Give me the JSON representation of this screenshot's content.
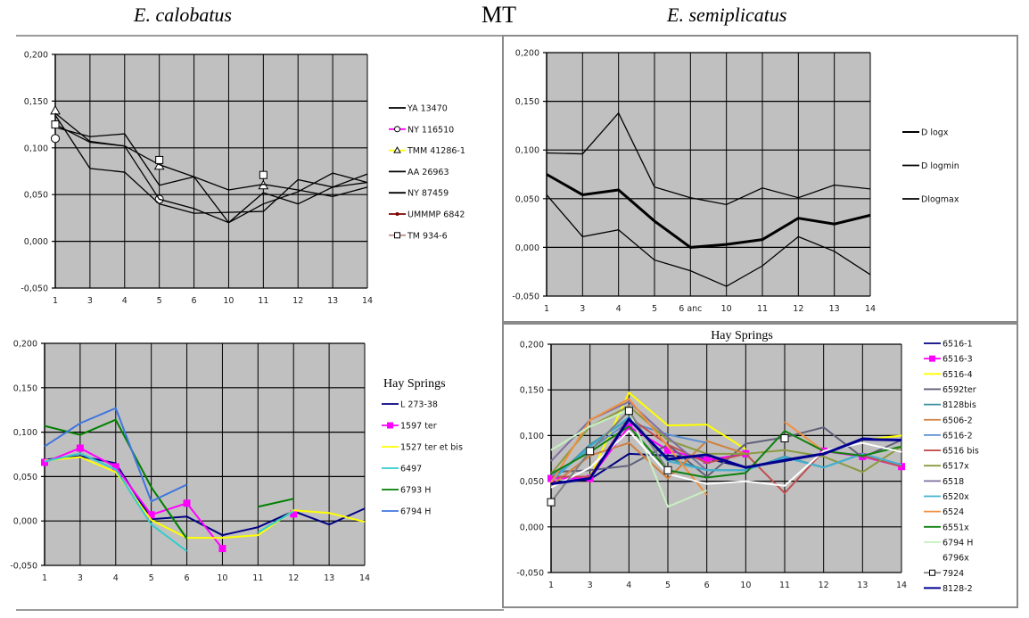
{
  "header": {
    "left_title": "E. calobatus",
    "center_title": "MT",
    "right_title": "E. semiplicatus"
  },
  "chart_data": [
    {
      "type": "line",
      "id": "calobatus-mt",
      "title": "",
      "categories": [
        "1",
        "3",
        "4",
        "5",
        "6",
        "10",
        "11",
        "12",
        "13",
        "14"
      ],
      "ylim": [
        -0.05,
        0.2
      ],
      "y_ticks": [
        "-0,050",
        "0,000",
        "0,050",
        "0,100",
        "0,150",
        "0,200"
      ],
      "grid": true,
      "plot_background": "#c0c0c0",
      "legend_placement": "right",
      "series": [
        {
          "name": "YA 13470",
          "color": "#000000",
          "marker": "none",
          "values": [
            0.122,
            0.112,
            0.115,
            0.06,
            0.069,
            0.02,
            0.052,
            0.04,
            0.058,
            0.072
          ]
        },
        {
          "name": "NY 116510",
          "color": "#ff00ff",
          "line_color": "#000000",
          "marker": "circle",
          "values": [
            0.11,
            null,
            null,
            0.045,
            null,
            null,
            null,
            null,
            null,
            null
          ]
        },
        {
          "name": "TMM 41286-1",
          "color": "#ffff00",
          "line_color": "#000000",
          "marker": "triangle",
          "values": [
            0.14,
            null,
            null,
            0.081,
            null,
            null,
            0.06,
            null,
            null,
            null
          ]
        },
        {
          "name": "AA 26963",
          "color": "#000000",
          "marker": "none",
          "values": [
            0.135,
            0.078,
            0.074,
            0.04,
            0.03,
            0.031,
            0.032,
            0.066,
            0.058,
            0.063
          ]
        },
        {
          "name": "NY 87459",
          "color": "#000000",
          "marker": "none",
          "values": [
            0.125,
            0.106,
            0.102,
            0.045,
            0.035,
            0.02,
            0.04,
            0.053,
            0.073,
            0.063
          ]
        },
        {
          "name": "UMMMP 6842",
          "color": "#800000",
          "line_color": "#000000",
          "marker": "dot",
          "values": [
            0.137,
            0.107,
            0.102,
            0.082,
            0.069,
            0.055,
            0.061,
            0.055,
            0.048,
            0.058
          ]
        },
        {
          "name": "TM 934-6",
          "color": "#c09090",
          "line_color": "#000000",
          "marker": "square",
          "values": [
            0.125,
            null,
            null,
            0.087,
            null,
            null,
            0.071,
            null,
            null,
            null
          ]
        }
      ]
    },
    {
      "type": "line",
      "id": "semiplicatus-mt",
      "title": "",
      "categories": [
        "1",
        "3",
        "4",
        "5",
        "6 anc",
        "10",
        "11",
        "12",
        "13",
        "14"
      ],
      "ylim": [
        -0.05,
        0.2
      ],
      "y_ticks": [
        "-0,050",
        "0,000",
        "0,050",
        "0,100",
        "0,150",
        "0,200"
      ],
      "grid": true,
      "plot_background": "#c0c0c0",
      "legend_placement": "right",
      "series": [
        {
          "name": "D logx",
          "color": "#000000",
          "marker": "none",
          "bold": true,
          "values": [
            0.075,
            0.054,
            0.059,
            0.027,
            0.0,
            0.003,
            0.008,
            0.03,
            0.024,
            0.033
          ]
        },
        {
          "name": "D logmin",
          "color": "#000000",
          "marker": "none",
          "values": [
            0.054,
            0.011,
            0.018,
            -0.013,
            -0.024,
            -0.04,
            -0.019,
            0.011,
            -0.004,
            -0.028
          ]
        },
        {
          "name": "Dlogmax",
          "color": "#000000",
          "marker": "none",
          "values": [
            0.097,
            0.096,
            0.138,
            0.062,
            0.051,
            0.044,
            0.061,
            0.051,
            0.064,
            0.06
          ]
        }
      ]
    },
    {
      "type": "line",
      "id": "calobatus-hay-springs",
      "title": "",
      "legend_title": "Hay Springs",
      "categories": [
        "1",
        "3",
        "4",
        "5",
        "6",
        "10",
        "11",
        "12",
        "13",
        "14"
      ],
      "ylim": [
        -0.05,
        0.2
      ],
      "y_ticks": [
        "-0,050",
        "0,000",
        "0,050",
        "0,100",
        "0,150",
        "0,200"
      ],
      "grid": true,
      "plot_background": "#c0c0c0",
      "legend_placement": "right",
      "series": [
        {
          "name": "L 273-38",
          "color": "#000080",
          "marker": "none",
          "values": [
            0.069,
            0.073,
            0.065,
            0.002,
            0.005,
            -0.016,
            -0.007,
            0.011,
            -0.004,
            0.014
          ]
        },
        {
          "name": "1597 ter",
          "color": "#ff00ff",
          "marker": "square-filled",
          "values": [
            0.066,
            0.082,
            0.061,
            0.007,
            0.02,
            -0.031,
            null,
            0.008,
            null,
            null
          ]
        },
        {
          "name": "1527 ter et bis",
          "color": "#ffff00",
          "marker": "none",
          "values": [
            0.068,
            0.072,
            0.055,
            0.001,
            -0.019,
            -0.019,
            -0.016,
            0.012,
            0.009,
            -0.001
          ]
        },
        {
          "name": "6497",
          "color": "#33cccc",
          "marker": "none",
          "values": [
            0.067,
            0.076,
            0.058,
            -0.004,
            -0.034,
            null,
            -0.013,
            0.011,
            null,
            null
          ]
        },
        {
          "name": "6793 H",
          "color": "#008000",
          "marker": "none",
          "values": [
            0.107,
            0.097,
            0.114,
            0.038,
            -0.02,
            null,
            0.016,
            0.025,
            null,
            null
          ]
        },
        {
          "name": "6794 H",
          "color": "#3f75e0",
          "marker": "none",
          "values": [
            0.084,
            0.11,
            0.127,
            0.022,
            0.041,
            null,
            null,
            null,
            null,
            null
          ]
        }
      ]
    },
    {
      "type": "line",
      "id": "semiplicatus-hay-springs",
      "title": "Hay Springs",
      "categories": [
        "1",
        "3",
        "4",
        "5",
        "6",
        "10",
        "11",
        "12",
        "13",
        "14"
      ],
      "ylim": [
        -0.05,
        0.2
      ],
      "y_ticks": [
        "-0,050",
        "0,000",
        "0,050",
        "0,100",
        "0,150",
        "0,200"
      ],
      "grid": true,
      "plot_background": "#c0c0c0",
      "legend_placement": "right",
      "series": [
        {
          "name": "6516-1",
          "color": "#000080",
          "marker": "none",
          "values": [
            0.048,
            0.052,
            0.08,
            0.078,
            0.075,
            0.065,
            0.072,
            0.08,
            0.097,
            0.095
          ]
        },
        {
          "name": "6516-3",
          "color": "#ff00ff",
          "marker": "square-filled",
          "values": [
            0.053,
            0.053,
            0.11,
            0.084,
            0.073,
            0.08,
            null,
            0.083,
            0.077,
            0.066
          ]
        },
        {
          "name": "6516-4",
          "color": "#ffff00",
          "marker": "none",
          "values": [
            0.055,
            0.055,
            0.147,
            0.111,
            0.112,
            0.085,
            null,
            null,
            0.095,
            0.1
          ]
        },
        {
          "name": "6592ter",
          "color": "#60607a",
          "marker": "none",
          "values": [
            0.06,
            0.062,
            0.067,
            0.09,
            0.055,
            0.091,
            0.098,
            0.109,
            0.076,
            0.095
          ]
        },
        {
          "name": "8128bis",
          "color": "#3a8fa0",
          "marker": "none",
          "values": [
            0.05,
            0.09,
            0.118,
            0.075,
            0.062,
            0.062,
            0.077,
            0.065,
            0.08,
            0.068
          ]
        },
        {
          "name": "6506-2",
          "color": "#d08040",
          "marker": "none",
          "values": [
            0.045,
            0.078,
            0.092,
            0.053,
            0.094,
            0.08,
            null,
            null,
            null,
            null
          ]
        },
        {
          "name": "6516-2",
          "color": "#5b8fd0",
          "marker": "none",
          "values": [
            0.055,
            0.085,
            0.115,
            0.101,
            0.092,
            null,
            null,
            null,
            null,
            null
          ]
        },
        {
          "name": "6516 bis",
          "color": "#c05050",
          "marker": "none",
          "values": [
            0.055,
            0.055,
            0.12,
            0.09,
            0.07,
            0.08,
            0.037,
            0.083,
            0.078,
            0.066
          ]
        },
        {
          "name": "6517x",
          "color": "#8a9a40",
          "marker": "none",
          "values": [
            0.058,
            0.11,
            0.132,
            0.095,
            0.08,
            0.08,
            0.084,
            0.077,
            0.06,
            0.088
          ]
        },
        {
          "name": "6518",
          "color": "#8070a0",
          "marker": "none",
          "values": [
            0.072,
            0.117,
            0.137,
            0.098,
            0.062,
            null,
            null,
            null,
            null,
            null
          ]
        },
        {
          "name": "6520x",
          "color": "#40b0d0",
          "marker": "none",
          "values": [
            0.05,
            0.088,
            0.12,
            0.072,
            0.062,
            0.062,
            0.076,
            0.065,
            0.08,
            0.068
          ]
        },
        {
          "name": "6524",
          "color": "#f09040",
          "marker": "none",
          "values": [
            0.048,
            0.117,
            0.14,
            0.088,
            0.035,
            null,
            0.115,
            0.083,
            null,
            null
          ]
        },
        {
          "name": "6551x",
          "color": "#108010",
          "marker": "none",
          "values": [
            0.058,
            0.082,
            0.11,
            0.062,
            0.054,
            0.059,
            0.105,
            0.083,
            0.078,
            0.088
          ]
        },
        {
          "name": "6794 H",
          "color": "#c8f0c0",
          "marker": "none",
          "values": [
            0.084,
            0.11,
            0.128,
            0.022,
            0.04,
            null,
            null,
            null,
            null,
            null
          ]
        },
        {
          "name": "6796x",
          "color": "#ffffff",
          "marker": "none",
          "values": [
            0.043,
            0.065,
            0.105,
            0.058,
            0.047,
            0.05,
            0.045,
            0.083,
            0.092,
            0.082
          ]
        },
        {
          "name": "7924",
          "color": "#808080",
          "marker": "square",
          "values": [
            0.027,
            0.083,
            0.127,
            0.062,
            null,
            null,
            0.097,
            null,
            null,
            null
          ]
        },
        {
          "name": "8128-2",
          "color": "#000090",
          "marker": "none",
          "bold": true,
          "values": [
            0.047,
            0.053,
            0.118,
            0.074,
            0.079,
            0.065,
            0.073,
            0.08,
            0.096,
            0.095
          ]
        }
      ]
    }
  ]
}
